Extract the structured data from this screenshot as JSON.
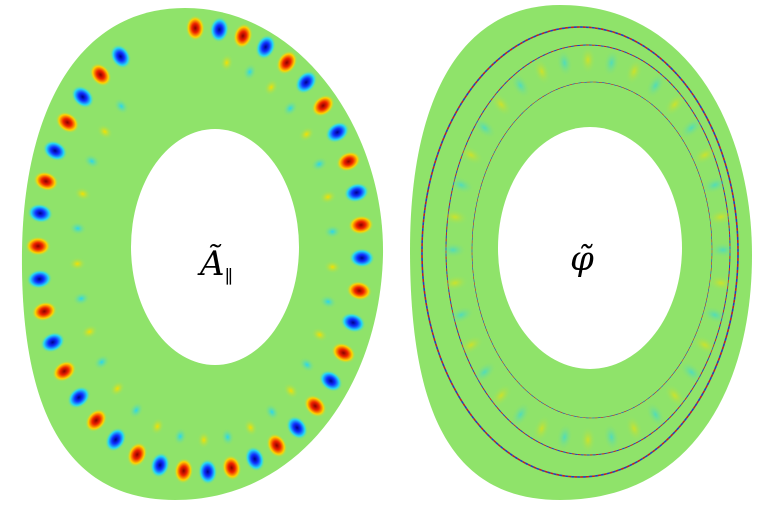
{
  "panels": [
    {
      "label": {
        "main": "Ã",
        "sub": "∥"
      }
    },
    {
      "label": {
        "main": "φ̃"
      }
    }
  ]
}
